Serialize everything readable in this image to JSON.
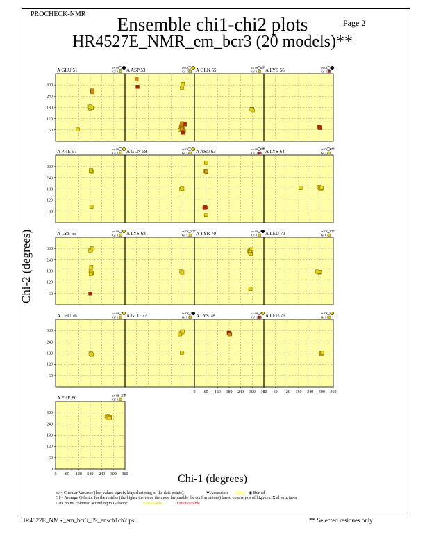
{
  "header": {
    "program": "PROCHECK-NMR",
    "page": "Page  2",
    "title": "Ensemble chi1-chi2 plots",
    "subtitle": "HR4527E_NMR_em_bcr3 (20 models)**"
  },
  "footer": {
    "filename": "HR4527E_NMR_em_bcr3_09_ensch1ch2.ps",
    "note": "** Selected residues only",
    "legend_line1": "cv = Circular Variance (low values signify high clustering of the data points).",
    "legend_accessible": "Accessible",
    "legend_buried": "Buried",
    "legend_line2": "Gf = Average G-factor for the residue (the higher the value the more favourable the conformations) based on analysis of high-res. Xtal structures",
    "legend_line3": "Data points coloured according to G-factor:",
    "legend_favourable": "Favourable",
    "legend_unfavourable": "Unfavourable"
  },
  "colors": {
    "panel_bg": "#ffffa8",
    "favourable": "#e6d200",
    "unfavourable": "#c01818",
    "grid": "#9a9a9a"
  },
  "chart_data": {
    "type": "scatter",
    "xlabel": "Chi-1 (degrees)",
    "ylabel": "Chi-2 (degrees)",
    "xlim": [
      0,
      360
    ],
    "ylim": [
      0,
      360
    ],
    "xticks": [
      0,
      60,
      120,
      180,
      240,
      300,
      360
    ],
    "yticks": [
      60,
      120,
      180,
      240,
      300
    ],
    "yticks_bottom": [
      0,
      60,
      120,
      180,
      240,
      300
    ],
    "grid": "dashed",
    "panels": [
      {
        "residue": "A GLU 51",
        "cv": "0.084",
        "gf": "0.25",
        "access": "partial",
        "gfcolor": "fav",
        "points": [
          [
            185,
            180,
            "fav"
          ],
          [
            180,
            175,
            "fav"
          ],
          [
            178,
            185,
            "fav"
          ],
          [
            188,
            178,
            "fav"
          ],
          [
            190,
            270,
            "mid"
          ],
          [
            192,
            262,
            "mid"
          ],
          [
            115,
            62,
            "fav"
          ]
        ]
      },
      {
        "residue": "A ASP 53",
        "cv": "0.357",
        "gf": "-0.80",
        "access": "buried",
        "gfcolor": "fav",
        "points": [
          [
            60,
            330,
            "mid"
          ],
          [
            65,
            290,
            "unf"
          ],
          [
            300,
            305,
            "fav"
          ],
          [
            295,
            285,
            "fav"
          ],
          [
            290,
            80,
            "mid"
          ],
          [
            295,
            70,
            "fav"
          ],
          [
            300,
            65,
            "mid"
          ],
          [
            285,
            60,
            "fav"
          ],
          [
            305,
            55,
            "mid"
          ],
          [
            300,
            50,
            "fav"
          ],
          [
            295,
            65,
            "mid"
          ],
          [
            310,
            90,
            "unf"
          ],
          [
            295,
            95,
            "mid"
          ],
          [
            300,
            45,
            "unf"
          ]
        ]
      },
      {
        "residue": "A GLN 55",
        "cv": "0.002",
        "gf": "0.60",
        "access": "accessible",
        "gfcolor": "fav",
        "points": [
          [
            300,
            168,
            "fav"
          ],
          [
            298,
            172,
            "fav"
          ],
          [
            302,
            165,
            "fav"
          ],
          [
            296,
            170,
            "fav"
          ]
        ]
      },
      {
        "residue": "A LYS 56",
        "cv": "0.003",
        "gf": "-1.85",
        "access": "partial",
        "gfcolor": "unf",
        "points": [
          [
            285,
            75,
            "mid"
          ],
          [
            290,
            72,
            "unf"
          ],
          [
            292,
            70,
            "unf"
          ],
          [
            288,
            78,
            "unf"
          ]
        ]
      },
      {
        "residue": "A PHE 57",
        "cv": "0.093",
        "gf": "0.54",
        "access": "buried",
        "gfcolor": "fav",
        "points": [
          [
            185,
            275,
            "fav"
          ],
          [
            187,
            272,
            "fav"
          ],
          [
            183,
            278,
            "fav"
          ],
          [
            186,
            85,
            "fav"
          ]
        ]
      },
      {
        "residue": "A GLN 58",
        "cv": "0.001",
        "gf": "1.01",
        "access": "buried",
        "gfcolor": "fav",
        "points": [
          [
            295,
            180,
            "fav"
          ],
          [
            292,
            178,
            "fav"
          ],
          [
            297,
            182,
            "fav"
          ]
        ]
      },
      {
        "residue": "A ASN 63",
        "cv": "0.255",
        "gf": "-1.59",
        "access": "accessible",
        "gfcolor": "unf",
        "points": [
          [
            60,
            320,
            "fav"
          ],
          [
            58,
            275,
            "mid"
          ],
          [
            62,
            270,
            "mid"
          ],
          [
            55,
            85,
            "unf"
          ],
          [
            58,
            80,
            "unf"
          ],
          [
            52,
            78,
            "unf"
          ],
          [
            60,
            40,
            "fav"
          ]
        ]
      },
      {
        "residue": "A LYS 64",
        "cv": "0.036",
        "gf": "1.09",
        "access": "accessible",
        "gfcolor": "fav",
        "points": [
          [
            285,
            190,
            "fav"
          ],
          [
            290,
            185,
            "fav"
          ],
          [
            295,
            180,
            "fav"
          ],
          [
            300,
            185,
            "fav"
          ],
          [
            190,
            185,
            "fav"
          ]
        ]
      },
      {
        "residue": "A LYS 65",
        "cv": "0.230",
        "gf": "0.42",
        "access": "buried",
        "gfcolor": "fav",
        "points": [
          [
            185,
            295,
            "fav"
          ],
          [
            180,
            290,
            "fav"
          ],
          [
            190,
            300,
            "fav"
          ],
          [
            185,
            200,
            "fav"
          ],
          [
            182,
            180,
            "fav"
          ],
          [
            188,
            170,
            "fav"
          ],
          [
            183,
            165,
            "fav"
          ],
          [
            180,
            60,
            "unf"
          ]
        ]
      },
      {
        "residue": "A LYS 68",
        "cv": "0.001",
        "gf": "1.22",
        "access": "accessible",
        "gfcolor": "fav",
        "points": [
          [
            295,
            175,
            "fav"
          ],
          [
            292,
            178,
            "fav"
          ],
          [
            297,
            172,
            "fav"
          ]
        ]
      },
      {
        "residue": "A TYR 70",
        "cv": "0.031",
        "gf": "0.08",
        "access": "partial",
        "gfcolor": "fav",
        "points": [
          [
            290,
            290,
            "fav"
          ],
          [
            285,
            285,
            "fav"
          ],
          [
            295,
            295,
            "fav"
          ],
          [
            288,
            280,
            "fav"
          ],
          [
            292,
            270,
            "fav"
          ],
          [
            290,
            85,
            "fav"
          ]
        ]
      },
      {
        "residue": "A LEU 73",
        "cv": "0.002",
        "gf": "0.40",
        "access": "accessible",
        "gfcolor": "fav",
        "points": [
          [
            280,
            175,
            "fav"
          ],
          [
            285,
            172,
            "fav"
          ],
          [
            290,
            175,
            "fav"
          ],
          [
            277,
            177,
            "fav"
          ]
        ]
      },
      {
        "residue": "A LEU 76",
        "cv": "0.001",
        "gf": "0.87",
        "access": "buried",
        "gfcolor": "fav",
        "points": [
          [
            185,
            175,
            "fav"
          ],
          [
            182,
            178,
            "fav"
          ],
          [
            188,
            172,
            "fav"
          ]
        ]
      },
      {
        "residue": "A GLU 77",
        "cv": "0.037",
        "gf": "0.43",
        "access": "partial",
        "gfcolor": "fav",
        "points": [
          [
            295,
            290,
            "fav"
          ],
          [
            290,
            285,
            "fav"
          ],
          [
            300,
            295,
            "fav"
          ],
          [
            285,
            280,
            "fav"
          ],
          [
            295,
            182,
            "fav"
          ]
        ]
      },
      {
        "residue": "A LYS 78",
        "cv": "0.002",
        "gf": "-2.09",
        "access": "buried",
        "gfcolor": "unf",
        "points": [
          [
            180,
            285,
            "unf"
          ],
          [
            185,
            282,
            "unf"
          ],
          [
            178,
            288,
            "unf"
          ],
          [
            182,
            280,
            "mid"
          ]
        ]
      },
      {
        "residue": "A LEU 79",
        "cv": "0.001",
        "gf": "0.87",
        "access": "buried",
        "gfcolor": "fav",
        "points": [
          [
            300,
            180,
            "fav"
          ],
          [
            298,
            178,
            "fav"
          ],
          [
            302,
            182,
            "fav"
          ]
        ]
      },
      {
        "residue": "A PHE 80",
        "cv": "0.003",
        "gf": "0.10",
        "access": "accessible",
        "gfcolor": "fav",
        "points": [
          [
            265,
            280,
            "fav"
          ],
          [
            270,
            275,
            "fav"
          ],
          [
            275,
            282,
            "fav"
          ],
          [
            285,
            278,
            "mid"
          ],
          [
            280,
            272,
            "fav"
          ]
        ]
      }
    ]
  }
}
